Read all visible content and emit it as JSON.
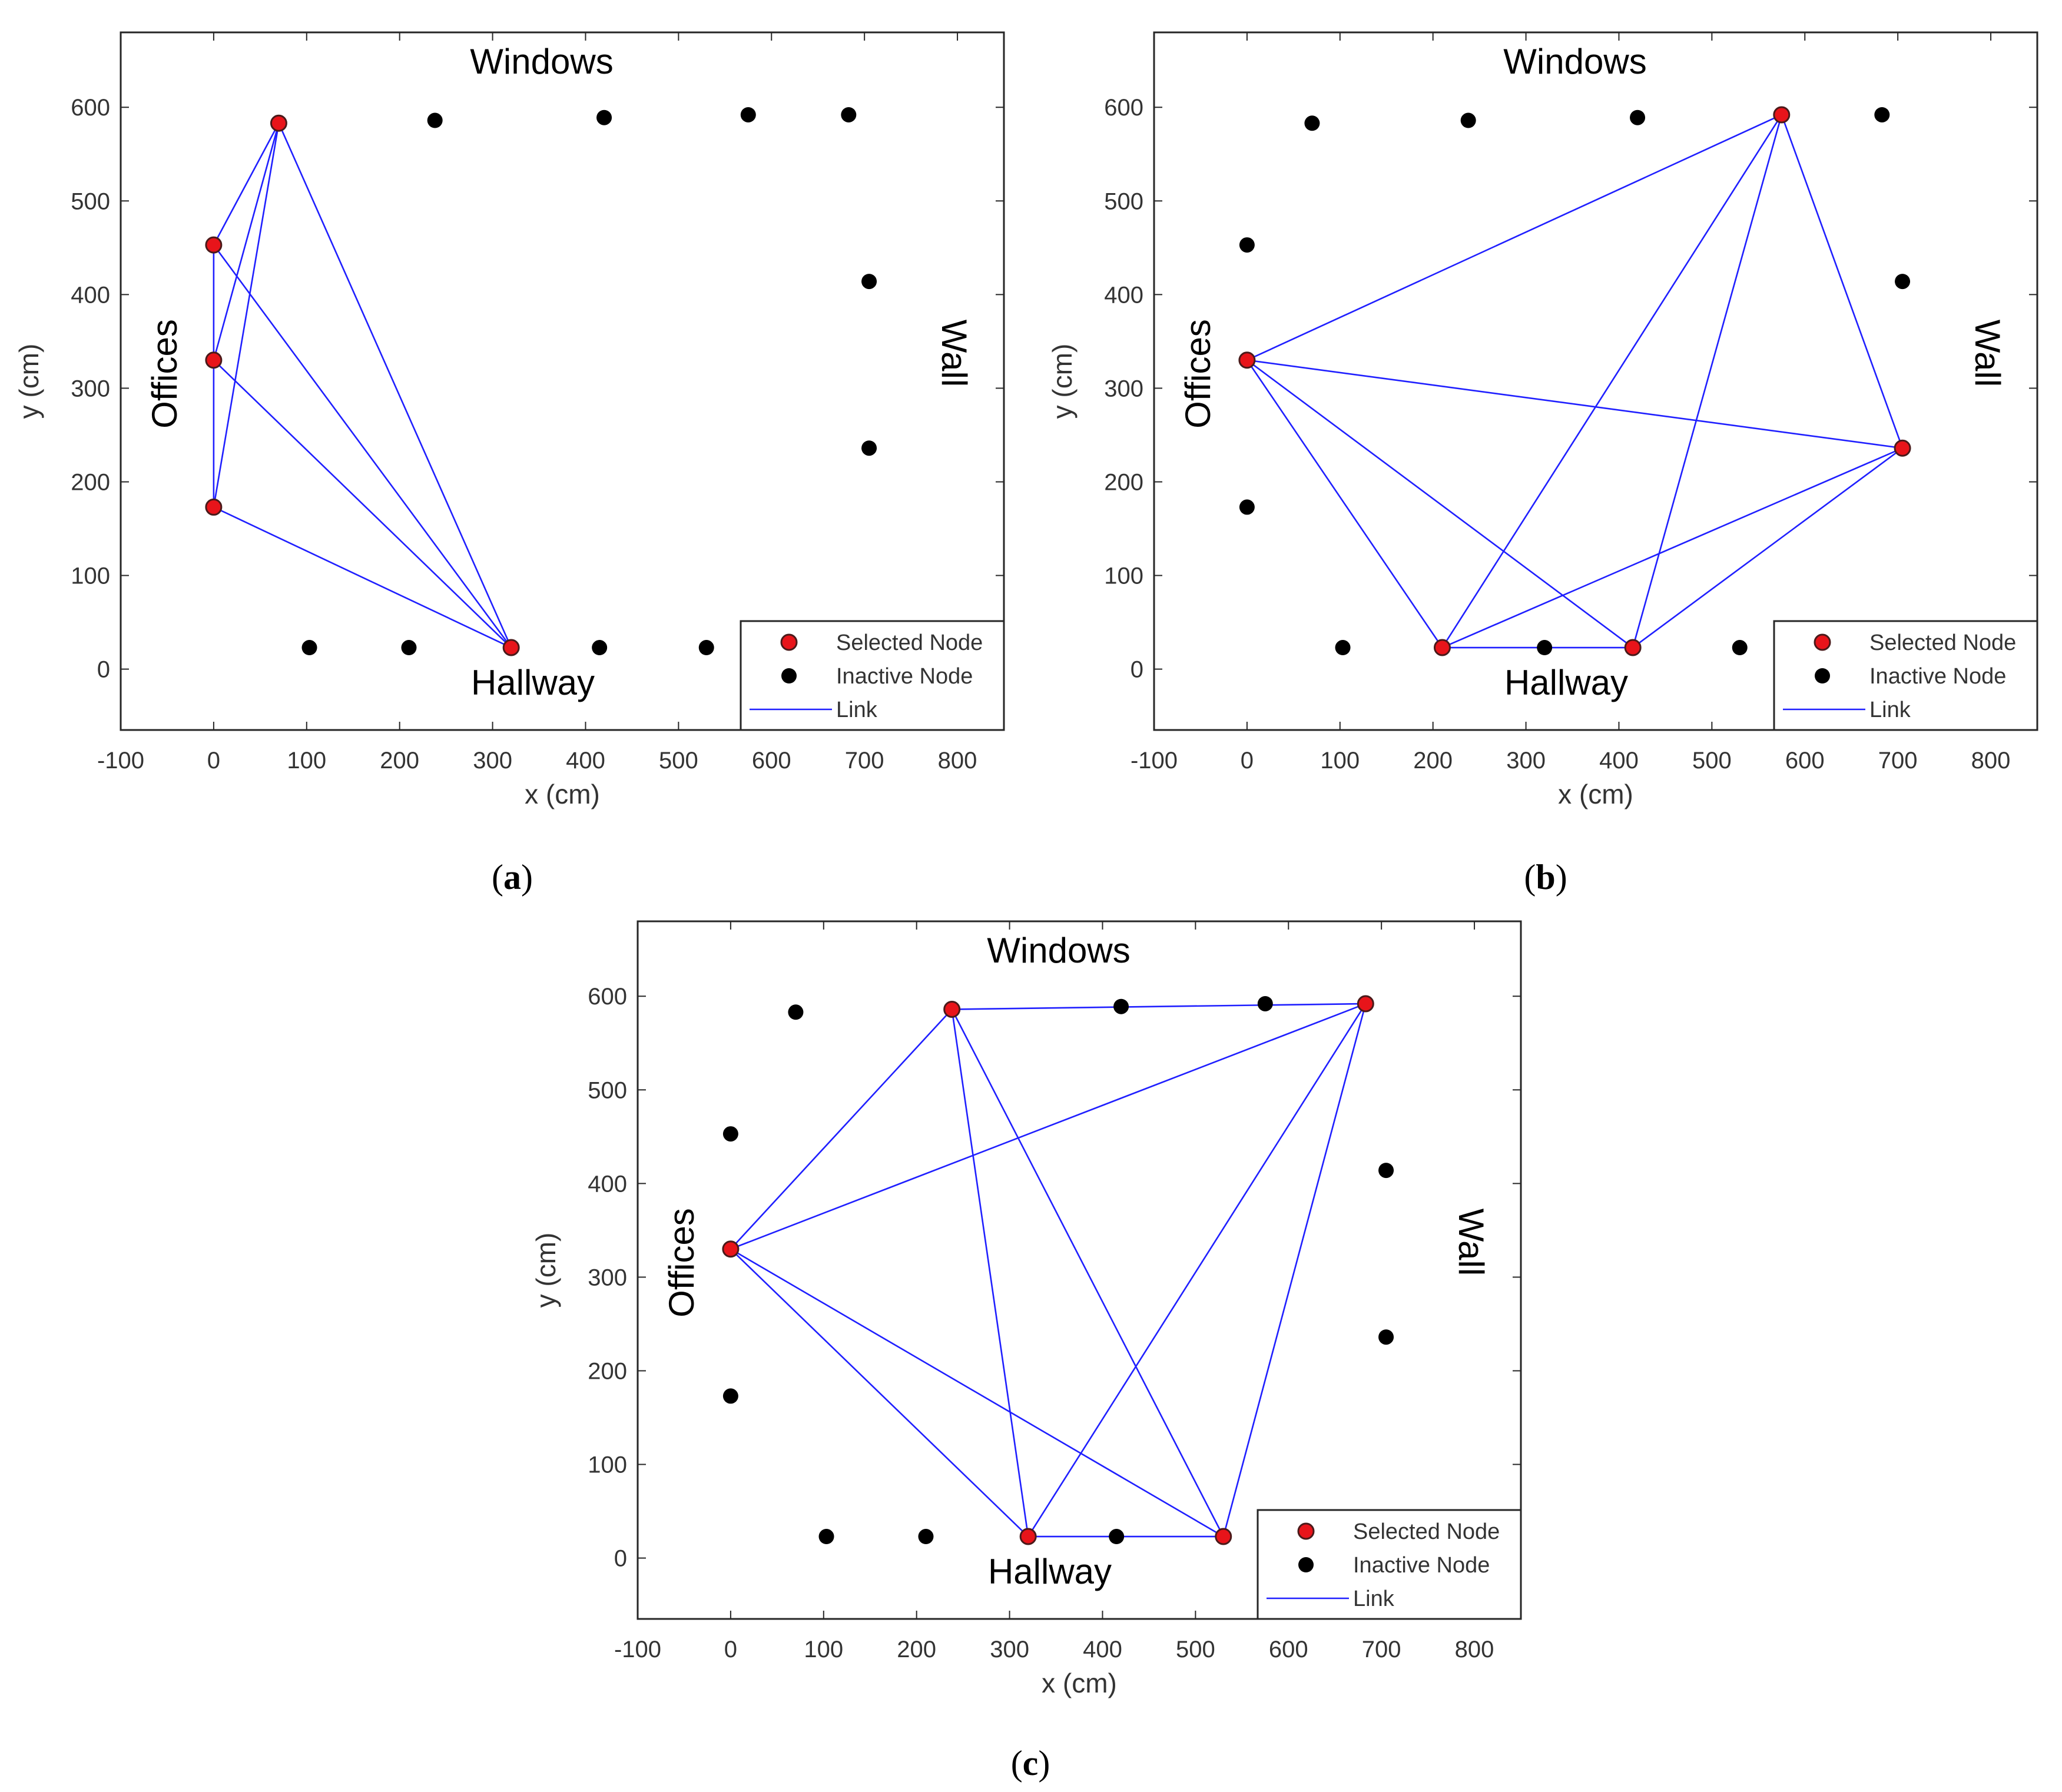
{
  "chart_data": [
    {
      "type": "scatter",
      "panel": "a",
      "caption_open": "(",
      "caption_letter": "a",
      "caption_close": ")",
      "xlabel": "x (cm)",
      "ylabel": "y (cm)",
      "xlim": [
        -100,
        850
      ],
      "ylim": [
        -65,
        680
      ],
      "xticks": [
        -100,
        0,
        100,
        200,
        300,
        400,
        500,
        600,
        700,
        800
      ],
      "yticks": [
        0,
        100,
        200,
        300,
        400,
        500,
        600
      ],
      "annotations": {
        "top": "Windows",
        "bottom": "Hallway",
        "left": "Offices",
        "right": "Wall"
      },
      "legend": {
        "position": "bottom-right",
        "entries": [
          "Selected Node",
          "Inactive Node",
          "Link"
        ]
      },
      "colors": {
        "selected": "#e8141a",
        "inactive": "#000000",
        "link": "#1f1fff"
      },
      "selected_nodes": [
        [
          70,
          583
        ],
        [
          0,
          453
        ],
        [
          0,
          330
        ],
        [
          0,
          173
        ],
        [
          320,
          23
        ]
      ],
      "inactive_nodes": [
        [
          238,
          586
        ],
        [
          420,
          589
        ],
        [
          575,
          592
        ],
        [
          683,
          592
        ],
        [
          705,
          414
        ],
        [
          705,
          236
        ],
        [
          103,
          23
        ],
        [
          210,
          23
        ],
        [
          415,
          23
        ],
        [
          530,
          23
        ]
      ],
      "links": [
        [
          0,
          1
        ],
        [
          0,
          2
        ],
        [
          0,
          3
        ],
        [
          0,
          4
        ],
        [
          1,
          3
        ],
        [
          1,
          4
        ],
        [
          2,
          4
        ],
        [
          3,
          4
        ]
      ]
    },
    {
      "type": "scatter",
      "panel": "b",
      "caption_open": "(",
      "caption_letter": "b",
      "caption_close": ")",
      "xlabel": "x (cm)",
      "ylabel": "y (cm)",
      "xlim": [
        -100,
        850
      ],
      "ylim": [
        -65,
        680
      ],
      "xticks": [
        -100,
        0,
        100,
        200,
        300,
        400,
        500,
        600,
        700,
        800
      ],
      "yticks": [
        0,
        100,
        200,
        300,
        400,
        500,
        600
      ],
      "annotations": {
        "top": "Windows",
        "bottom": "Hallway",
        "left": "Offices",
        "right": "Wall"
      },
      "legend": {
        "position": "bottom-right",
        "entries": [
          "Selected Node",
          "Inactive Node",
          "Link"
        ]
      },
      "colors": {
        "selected": "#e8141a",
        "inactive": "#000000",
        "link": "#1f1fff"
      },
      "selected_nodes": [
        [
          0,
          330
        ],
        [
          575,
          592
        ],
        [
          705,
          236
        ],
        [
          210,
          23
        ],
        [
          415,
          23
        ]
      ],
      "inactive_nodes": [
        [
          70,
          583
        ],
        [
          238,
          586
        ],
        [
          420,
          589
        ],
        [
          683,
          592
        ],
        [
          0,
          453
        ],
        [
          0,
          173
        ],
        [
          705,
          414
        ],
        [
          103,
          23
        ],
        [
          320,
          23
        ],
        [
          530,
          23
        ]
      ],
      "links": [
        [
          0,
          1
        ],
        [
          0,
          2
        ],
        [
          0,
          3
        ],
        [
          0,
          4
        ],
        [
          1,
          2
        ],
        [
          1,
          3
        ],
        [
          1,
          4
        ],
        [
          2,
          3
        ],
        [
          2,
          4
        ],
        [
          3,
          4
        ]
      ]
    },
    {
      "type": "scatter",
      "panel": "c",
      "caption_open": "(",
      "caption_letter": "c",
      "caption_close": ")",
      "xlabel": "x (cm)",
      "ylabel": "y (cm)",
      "xlim": [
        -100,
        850
      ],
      "ylim": [
        -65,
        680
      ],
      "xticks": [
        -100,
        0,
        100,
        200,
        300,
        400,
        500,
        600,
        700,
        800
      ],
      "yticks": [
        0,
        100,
        200,
        300,
        400,
        500,
        600
      ],
      "annotations": {
        "top": "Windows",
        "bottom": "Hallway",
        "left": "Offices",
        "right": "Wall"
      },
      "legend": {
        "position": "bottom-right",
        "entries": [
          "Selected Node",
          "Inactive Node",
          "Link"
        ]
      },
      "colors": {
        "selected": "#e8141a",
        "inactive": "#000000",
        "link": "#1f1fff"
      },
      "selected_nodes": [
        [
          238,
          586
        ],
        [
          683,
          592
        ],
        [
          0,
          330
        ],
        [
          320,
          23
        ],
        [
          530,
          23
        ]
      ],
      "inactive_nodes": [
        [
          70,
          583
        ],
        [
          420,
          589
        ],
        [
          575,
          592
        ],
        [
          0,
          453
        ],
        [
          0,
          173
        ],
        [
          705,
          414
        ],
        [
          705,
          236
        ],
        [
          103,
          23
        ],
        [
          210,
          23
        ],
        [
          415,
          23
        ]
      ],
      "links": [
        [
          0,
          1
        ],
        [
          0,
          2
        ],
        [
          0,
          3
        ],
        [
          0,
          4
        ],
        [
          1,
          2
        ],
        [
          1,
          3
        ],
        [
          1,
          4
        ],
        [
          2,
          3
        ],
        [
          2,
          4
        ],
        [
          3,
          4
        ]
      ]
    }
  ]
}
